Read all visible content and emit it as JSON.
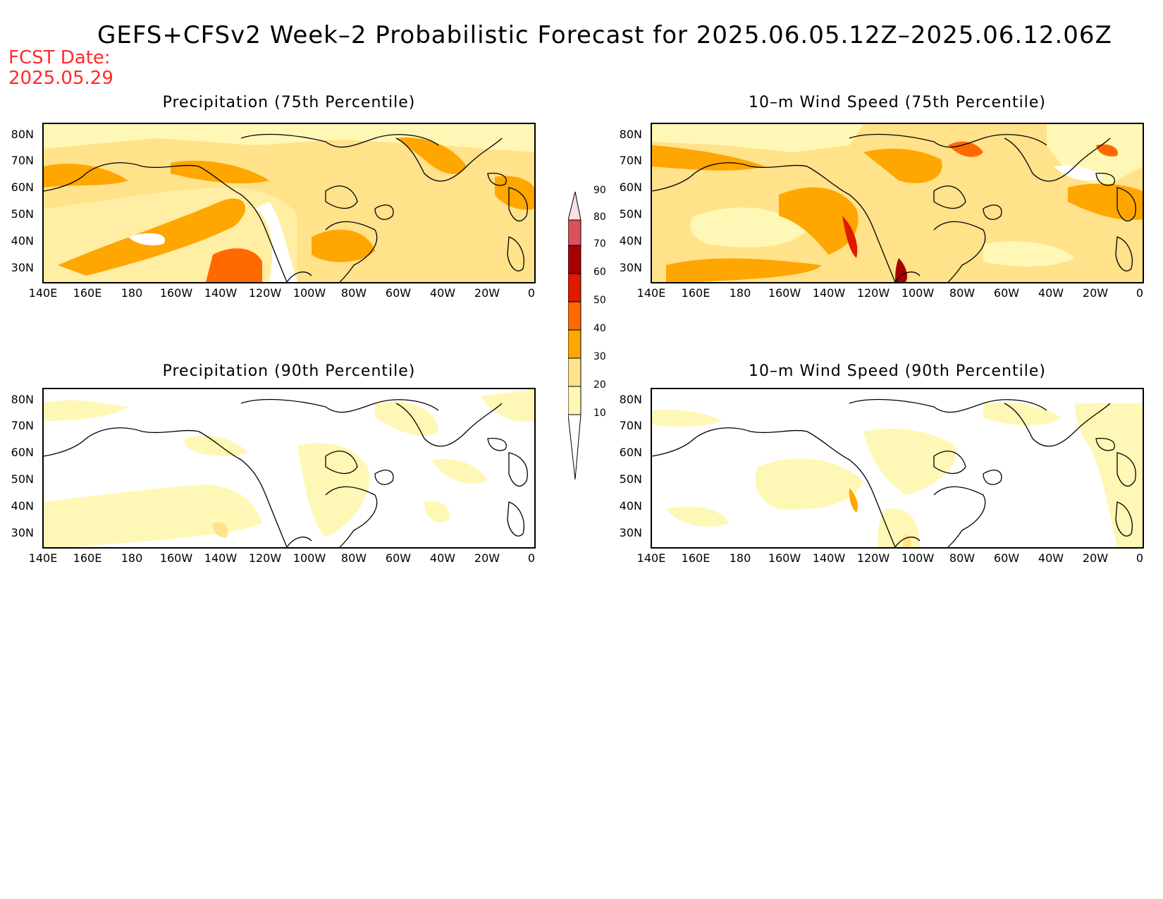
{
  "title": "GEFS+CFSv2 Week–2 Probabilistic Forecast for 2025.06.05.12Z–2025.06.12.06Z",
  "fcst_date": {
    "label": "FCST Date:",
    "value": "2025.05.29"
  },
  "panels": [
    {
      "title": "Precipitation (75th Percentile)"
    },
    {
      "title": "10–m Wind Speed (75th Percentile)"
    },
    {
      "title": "Precipitation (90th Percentile)"
    },
    {
      "title": "10–m Wind Speed (90th Percentile)"
    }
  ],
  "lat_labels": [
    "80N",
    "70N",
    "60N",
    "50N",
    "40N",
    "30N"
  ],
  "lon_labels": [
    "140E",
    "160E",
    "180",
    "160W",
    "140W",
    "120W",
    "100W",
    "80W",
    "60W",
    "40W",
    "20W",
    "0"
  ],
  "colorbar": {
    "levels": [
      "10",
      "20",
      "30",
      "40",
      "50",
      "60",
      "70",
      "80",
      "90"
    ],
    "colors": [
      "#fff7b5",
      "#ffe28a",
      "#ffa600",
      "#ff6a00",
      "#e01a00",
      "#a60000",
      "#d9525a",
      "#f19aa0",
      "#fde0e3"
    ]
  }
}
